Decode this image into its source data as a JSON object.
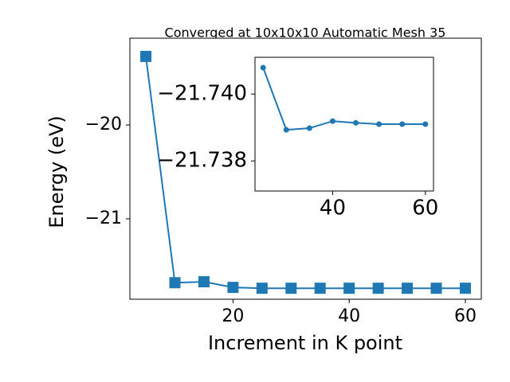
{
  "chart_data": [
    {
      "type": "line",
      "title": "Converged at 10x10x10 Automatic Mesh 35",
      "xlabel": "Increment in K point",
      "ylabel": "Energy (eV)",
      "x": [
        5,
        10,
        15,
        20,
        25,
        30,
        35,
        40,
        45,
        50,
        55,
        60
      ],
      "series": [
        {
          "color": "#1f77b4",
          "marker": "square",
          "values": [
            -19.27,
            -21.68,
            -21.67,
            -21.73,
            -21.739,
            -21.739,
            -21.739,
            -21.739,
            -21.739,
            -21.739,
            -21.739,
            -21.739
          ]
        }
      ],
      "xlim": [
        2.25,
        62.75
      ],
      "xticks": [
        20,
        40,
        60
      ],
      "ylim": [
        -21.856,
        -19.076
      ],
      "yticks": [
        {
          "value": -21,
          "label": "−21"
        },
        {
          "value": -20,
          "label": "−20"
        }
      ]
    },
    {
      "type": "line",
      "x": [
        25,
        30,
        35,
        40,
        45,
        50,
        55,
        60
      ],
      "series": [
        {
          "color": "#1f77b4",
          "marker": "circle",
          "values": [
            -21.74079,
            -21.73893,
            -21.73898,
            -21.73919,
            -21.73914,
            -21.7391,
            -21.7391,
            -21.7391
          ]
        }
      ],
      "xlim": [
        23.25,
        61.75
      ],
      "xticks": [
        40,
        60
      ],
      "ylim": [
        -21.7371,
        -21.7411
      ],
      "yticks": [
        {
          "value": -21.74,
          "label": "−21.740"
        },
        {
          "value": -21.738,
          "label": "−21.738"
        }
      ]
    }
  ]
}
